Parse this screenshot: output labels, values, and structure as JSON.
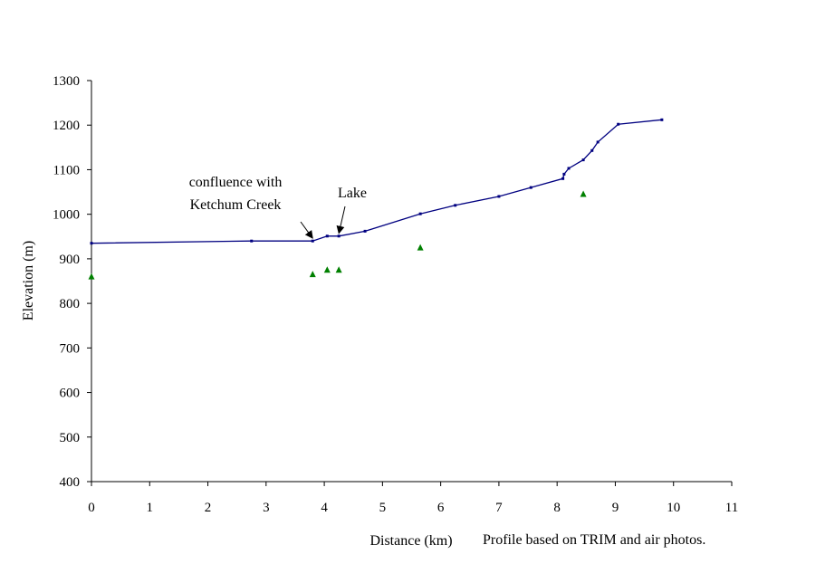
{
  "chart_data": {
    "type": "line",
    "title": "",
    "xlabel": "Distance (km)",
    "ylabel": "Elevation (m)",
    "xlim": [
      0,
      11
    ],
    "ylim": [
      400,
      1300
    ],
    "x_ticks": [
      0,
      1,
      2,
      3,
      4,
      5,
      6,
      7,
      8,
      9,
      10,
      11
    ],
    "y_ticks": [
      400,
      500,
      600,
      700,
      800,
      900,
      1000,
      1100,
      1200,
      1300
    ],
    "grid": false,
    "legend": "none",
    "series": [
      {
        "type": "line",
        "color": "#000080",
        "x": [
          0,
          2.75,
          3.8,
          4.05,
          4.25,
          4.7,
          5.65,
          6.25,
          7.0,
          7.55,
          8.1,
          8.12,
          8.2,
          8.45,
          8.6,
          8.7,
          9.05,
          9.8
        ],
        "y": [
          935,
          940,
          940,
          951,
          951,
          962,
          1001,
          1020,
          1040,
          1060,
          1080,
          1090,
          1103,
          1122,
          1143,
          1162,
          1202,
          1212
        ]
      },
      {
        "type": "scatter",
        "color": "#008000",
        "marker": "triangle",
        "x": [
          0,
          3.8,
          4.05,
          4.25,
          5.65,
          8.45
        ],
        "y": [
          860,
          865,
          875,
          875,
          925,
          1045
        ]
      }
    ],
    "annotations": [
      {
        "lines": [
          "confluence with",
          "Ketchum Creek"
        ],
        "arrow_to": [
          3.8,
          940
        ]
      },
      {
        "lines": [
          "Lake"
        ],
        "arrow_to": [
          4.25,
          951
        ]
      }
    ],
    "footnote": "Profile based on TRIM and air photos."
  },
  "colors": {
    "line": "#000080",
    "markers": "#008000",
    "axes": "#000000"
  }
}
